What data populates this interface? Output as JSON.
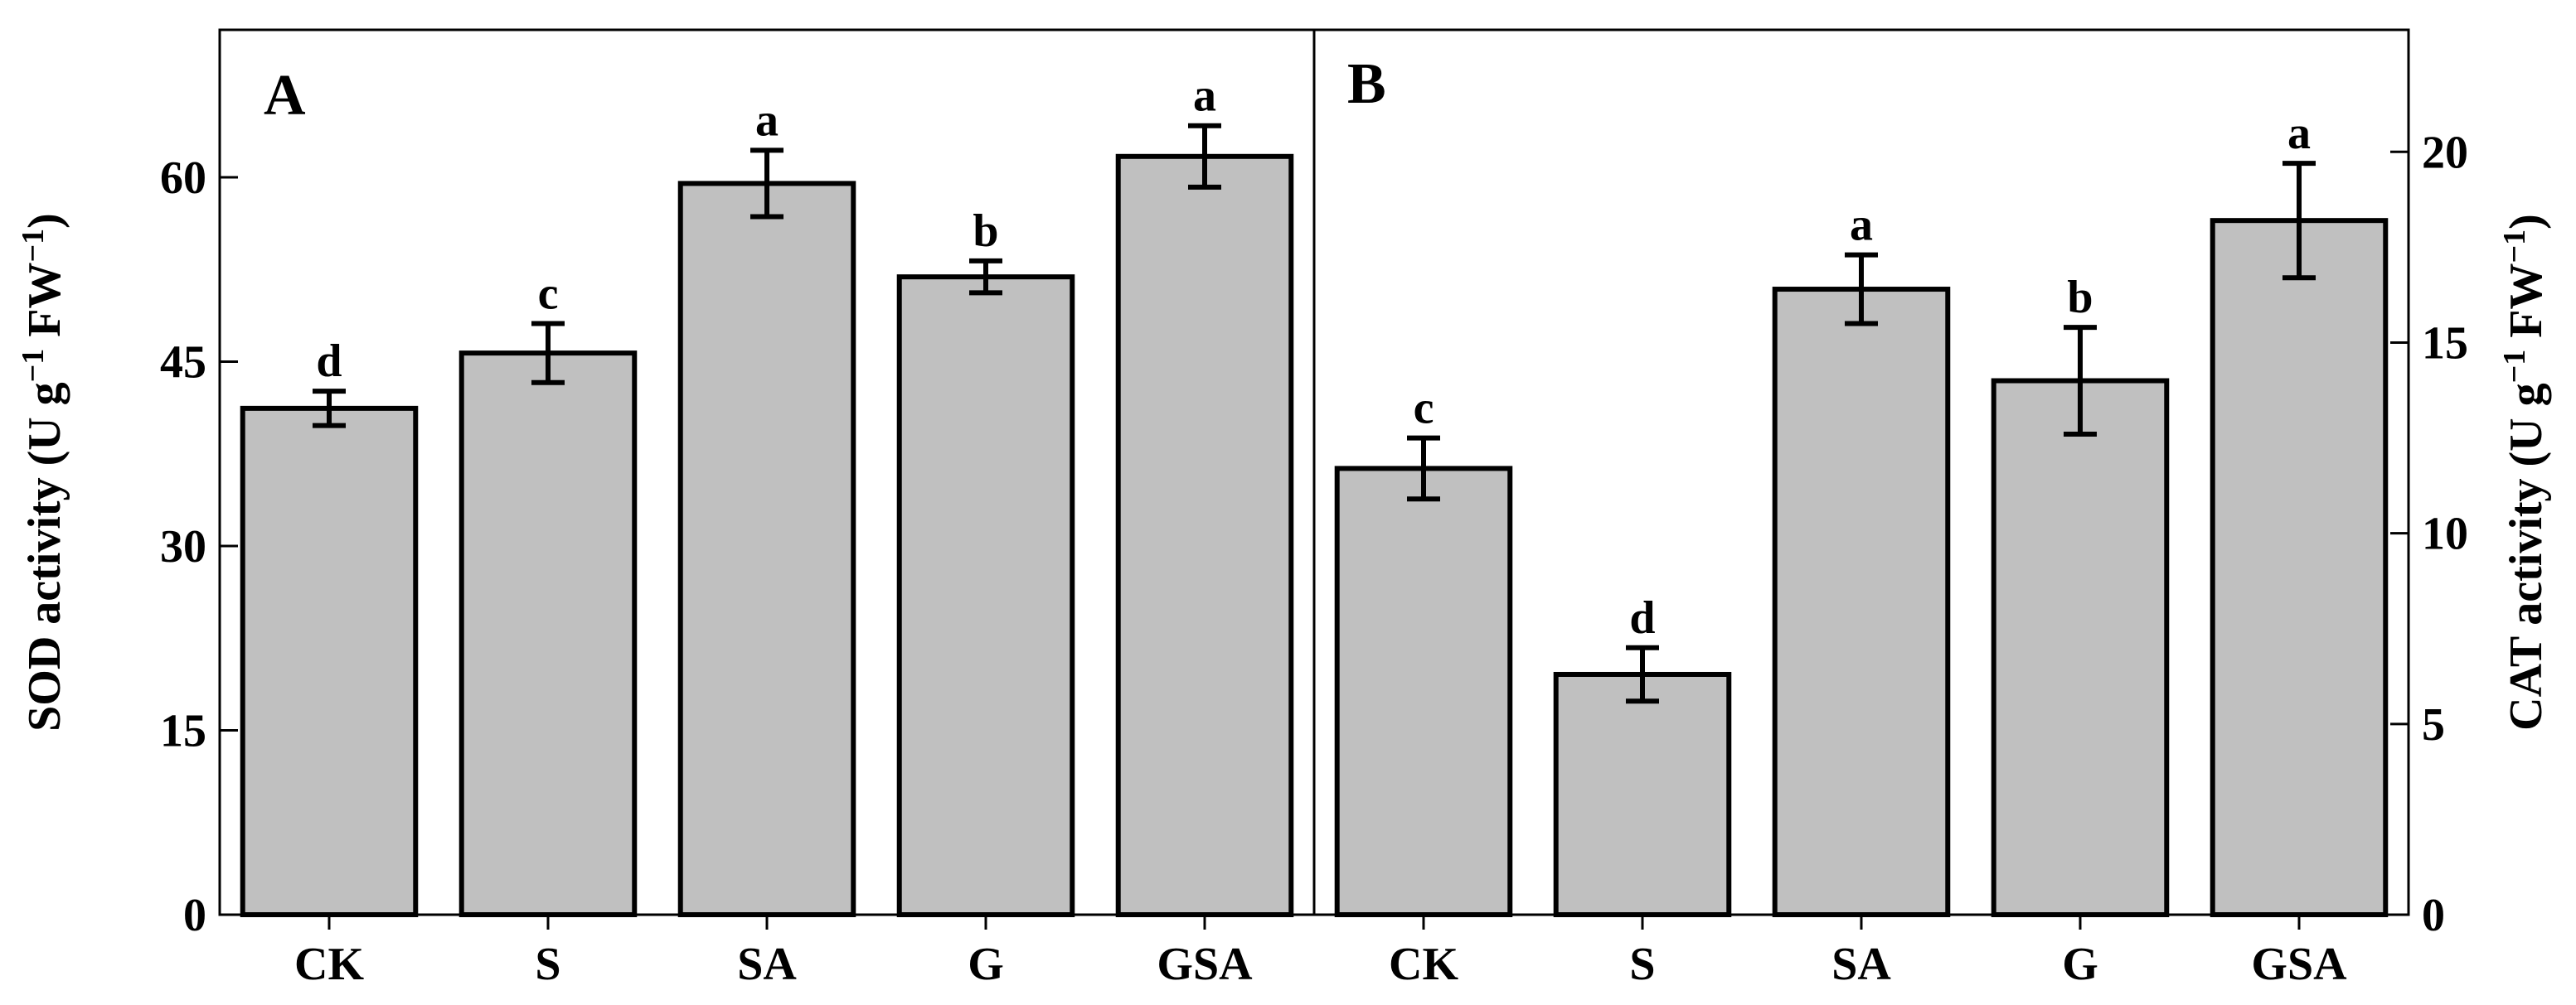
{
  "chart_data": [
    {
      "type": "bar",
      "panel": "A",
      "categories": [
        "CK",
        "S",
        "SA",
        "G",
        "GSA"
      ],
      "values": [
        41.2,
        45.7,
        59.5,
        51.9,
        61.7
      ],
      "errors": [
        1.4,
        2.4,
        2.7,
        1.3,
        2.5
      ],
      "significance": [
        "d",
        "c",
        "a",
        "b",
        "a"
      ],
      "ylabel_main": "SOD activity (U g",
      "ylabel_sup1": "−1",
      "ylabel_mid": " FW",
      "ylabel_sup2": "−1",
      "ylabel_end": ")",
      "ylim": [
        0,
        72
      ],
      "yticks": [
        0,
        15,
        30,
        45,
        60
      ],
      "axis_side": "left",
      "color": "#c0c0c0"
    },
    {
      "type": "bar",
      "panel": "B",
      "categories": [
        "CK",
        "S",
        "SA",
        "G",
        "GSA"
      ],
      "values": [
        11.7,
        6.3,
        16.4,
        14.0,
        18.2
      ],
      "errors": [
        0.8,
        0.7,
        0.9,
        1.4,
        1.5
      ],
      "significance": [
        "c",
        "d",
        "a",
        "b",
        "a"
      ],
      "ylabel_main": "CAT activity (U g",
      "ylabel_sup1": "−1",
      "ylabel_mid": " FW",
      "ylabel_sup2": "−1",
      "ylabel_end": ")",
      "ylim": [
        0,
        23.2
      ],
      "yticks": [
        0,
        5,
        10,
        15,
        20
      ],
      "axis_side": "right",
      "color": "#c0c0c0"
    }
  ]
}
